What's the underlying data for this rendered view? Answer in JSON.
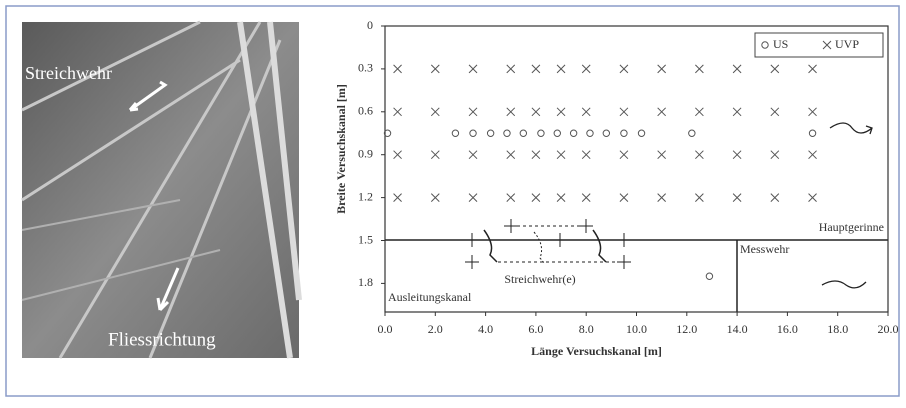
{
  "photo_labels": [
    "Streichwehr",
    "Fliessrichtung"
  ],
  "chart_data": {
    "type": "scatter",
    "x_label": "Länge Versuchskanal [m]",
    "y_label": "Breite Versuchskanal [m]",
    "xlim": [
      0,
      20
    ],
    "ylim": [
      0,
      2.0
    ],
    "y_inverted": true,
    "xticks": [
      {
        "value": 0,
        "label": "0.0"
      },
      {
        "value": 2,
        "label": "2.0"
      },
      {
        "value": 4,
        "label": "4.0"
      },
      {
        "value": 6,
        "label": "6.0"
      },
      {
        "value": 8,
        "label": "8.0"
      },
      {
        "value": 10,
        "label": "10.0"
      },
      {
        "value": 12,
        "label": "12.0"
      },
      {
        "value": 14,
        "label": "14.0"
      },
      {
        "value": 16,
        "label": "16.0"
      },
      {
        "value": 18,
        "label": "18.0"
      },
      {
        "value": 20,
        "label": "20.0"
      }
    ],
    "yticks": [
      0,
      0.3,
      0.6,
      0.9,
      1.2,
      1.5,
      1.8
    ],
    "legend": "upper right",
    "annotations": [
      "Hauptgerinne",
      "Messwehr",
      "Streichwehr(e)",
      "Ausleitungskanal"
    ],
    "series": [
      {
        "name": "US",
        "marker": "circle",
        "color": "#555555",
        "x": [
          0.1,
          2.8,
          3.5,
          4.2,
          4.85,
          5.5,
          6.2,
          6.85,
          7.5,
          8.15,
          8.8,
          9.5,
          10.2,
          12.2,
          17.0,
          12.9
        ],
        "values": [
          0.75,
          0.75,
          0.75,
          0.75,
          0.75,
          0.75,
          0.75,
          0.75,
          0.75,
          0.75,
          0.75,
          0.75,
          0.75,
          0.75,
          0.75,
          1.75
        ]
      },
      {
        "name": "UVP",
        "marker": "x",
        "color": "#555555",
        "x": [
          0.5,
          2.0,
          3.5,
          5.0,
          6.0,
          7.0,
          8.0,
          9.5,
          11.0,
          12.5,
          14.0,
          15.5,
          17.0,
          0.5,
          2.0,
          3.5,
          5.0,
          6.0,
          7.0,
          8.0,
          9.5,
          11.0,
          12.5,
          14.0,
          15.5,
          17.0,
          0.5,
          2.0,
          3.5,
          5.0,
          6.0,
          7.0,
          8.0,
          9.5,
          11.0,
          12.5,
          14.0,
          15.5,
          17.0,
          0.5,
          2.0,
          3.5,
          5.0,
          6.0,
          7.0,
          8.0,
          9.5,
          11.0,
          12.5,
          14.0,
          15.5,
          17.0
        ],
        "values": [
          0.3,
          0.3,
          0.3,
          0.3,
          0.3,
          0.3,
          0.3,
          0.3,
          0.3,
          0.3,
          0.3,
          0.3,
          0.3,
          0.6,
          0.6,
          0.6,
          0.6,
          0.6,
          0.6,
          0.6,
          0.6,
          0.6,
          0.6,
          0.6,
          0.6,
          0.6,
          0.9,
          0.9,
          0.9,
          0.9,
          0.9,
          0.9,
          0.9,
          0.9,
          0.9,
          0.9,
          0.9,
          0.9,
          0.9,
          1.2,
          1.2,
          1.2,
          1.2,
          1.2,
          1.2,
          1.2,
          1.2,
          1.2,
          1.2,
          1.2,
          1.2,
          1.2
        ]
      }
    ]
  }
}
